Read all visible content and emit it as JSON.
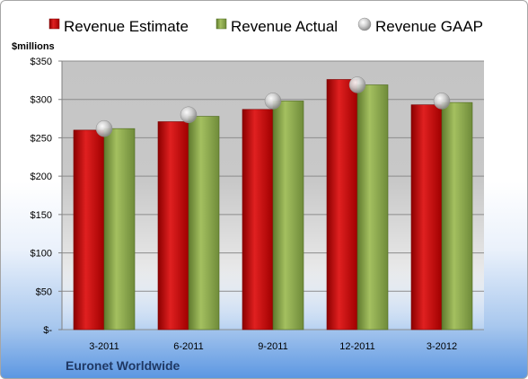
{
  "chart_data": {
    "type": "bar",
    "categories": [
      "3-2011",
      "6-2011",
      "9-2011",
      "12-2011",
      "3-2012"
    ],
    "series": [
      {
        "name": "Revenue Estimate",
        "kind": "bar",
        "color": "#c00000",
        "values": [
          260,
          271,
          287,
          326,
          293
        ]
      },
      {
        "name": "Revenue Actual",
        "kind": "bar",
        "color": "#8aa74e",
        "values": [
          262,
          278,
          298,
          319,
          296
        ]
      },
      {
        "name": "Revenue GAAP",
        "kind": "marker",
        "color": "#bfbfbf",
        "values": [
          262,
          280,
          298,
          319,
          298
        ]
      }
    ],
    "ylabel": "$millions",
    "ylim": [
      0,
      350
    ],
    "yticks": [
      0,
      50,
      100,
      150,
      200,
      250,
      300,
      350
    ],
    "ytick_labels": [
      "$-",
      "$50",
      "$100",
      "$150",
      "$200",
      "$250",
      "$300",
      "$350"
    ],
    "grid": true,
    "legend_position": "top",
    "footer": "Euronet Worldwide",
    "colors": {
      "footer_text": "#1f3864",
      "plot_bg": "#bfbfbf"
    }
  }
}
